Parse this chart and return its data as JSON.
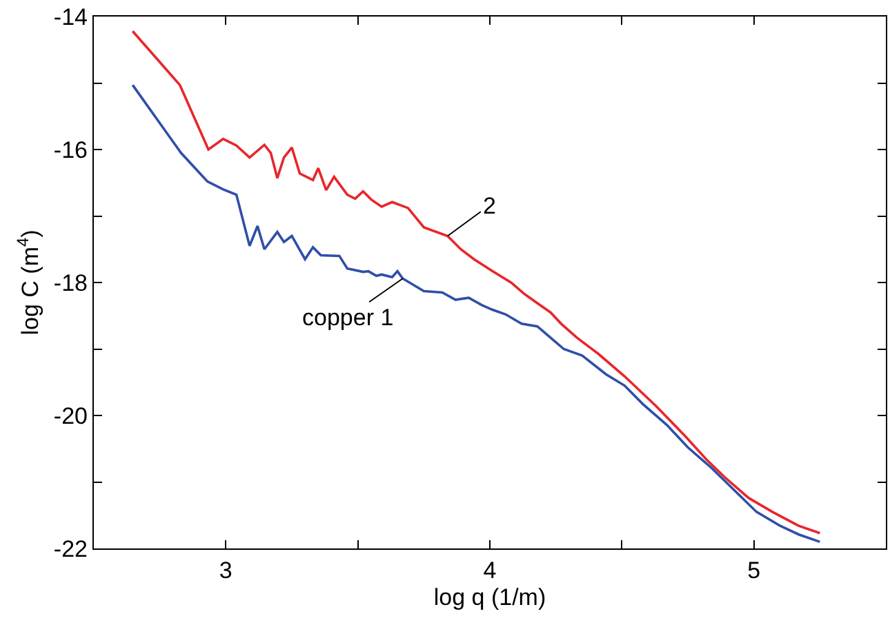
{
  "chart_data": {
    "type": "line",
    "xlabel": "log q (1/m)",
    "ylabel": "log C (m$^{4}$)",
    "xlim": [
      2.5,
      5.5
    ],
    "ylim": [
      -22,
      -14
    ],
    "xticks": [
      {
        "value": 2.5,
        "label": null
      },
      3,
      {
        "value": 3.5,
        "label": null
      },
      4,
      {
        "value": 4.5,
        "label": null
      },
      5,
      {
        "value": 5.5,
        "label": null
      }
    ],
    "yticks": [
      -22,
      {
        "value": -21,
        "label": null
      },
      -20,
      {
        "value": -19,
        "label": null
      },
      -18,
      {
        "value": -17,
        "label": null
      },
      -16,
      {
        "value": -15,
        "label": null
      },
      -14
    ],
    "marker": "none",
    "line_style": "solid",
    "series": [
      {
        "color": "#e8262b",
        "x": [
          2.647,
          2.826,
          2.934,
          2.99,
          3.04,
          3.09,
          3.146,
          3.17,
          3.195,
          3.22,
          3.25,
          3.28,
          3.33,
          3.35,
          3.38,
          3.41,
          3.46,
          3.49,
          3.52,
          3.55,
          3.59,
          3.63,
          3.69,
          3.75,
          3.84,
          3.89,
          3.94,
          4.01,
          4.08,
          4.13,
          4.19,
          4.23,
          4.27,
          4.33,
          4.41,
          4.51,
          4.63,
          4.74,
          4.82,
          4.89,
          4.98,
          5.07,
          5.17,
          5.25
        ],
        "values": [
          -14.22,
          -15.03,
          -16.0,
          -15.84,
          -15.94,
          -16.12,
          -15.93,
          -16.05,
          -16.43,
          -16.12,
          -15.97,
          -16.36,
          -16.46,
          -16.28,
          -16.61,
          -16.41,
          -16.68,
          -16.74,
          -16.63,
          -16.75,
          -16.86,
          -16.79,
          -16.88,
          -17.17,
          -17.3,
          -17.5,
          -17.65,
          -17.83,
          -18.0,
          -18.17,
          -18.34,
          -18.45,
          -18.62,
          -18.83,
          -19.07,
          -19.41,
          -19.86,
          -20.31,
          -20.66,
          -20.93,
          -21.24,
          -21.45,
          -21.66,
          -21.77
        ]
      },
      {
        "color": "#2f4fa8",
        "x": [
          2.647,
          2.83,
          2.93,
          2.99,
          3.04,
          3.09,
          3.12,
          3.146,
          3.195,
          3.22,
          3.25,
          3.3,
          3.33,
          3.36,
          3.43,
          3.46,
          3.52,
          3.54,
          3.57,
          3.59,
          3.63,
          3.65,
          3.67,
          3.75,
          3.82,
          3.87,
          3.92,
          3.97,
          4.01,
          4.06,
          4.12,
          4.18,
          4.23,
          4.28,
          4.35,
          4.44,
          4.51,
          4.58,
          4.67,
          4.75,
          4.84,
          4.93,
          5.01,
          5.1,
          5.17,
          5.25
        ],
        "values": [
          -15.03,
          -16.05,
          -16.48,
          -16.6,
          -16.68,
          -17.45,
          -17.15,
          -17.5,
          -17.24,
          -17.39,
          -17.3,
          -17.65,
          -17.47,
          -17.59,
          -17.6,
          -17.79,
          -17.84,
          -17.83,
          -17.9,
          -17.88,
          -17.92,
          -17.83,
          -17.94,
          -18.13,
          -18.15,
          -18.26,
          -18.23,
          -18.34,
          -18.41,
          -18.48,
          -18.62,
          -18.66,
          -18.83,
          -19.0,
          -19.1,
          -19.38,
          -19.55,
          -19.83,
          -20.14,
          -20.48,
          -20.79,
          -21.14,
          -21.45,
          -21.66,
          -21.79,
          -21.9
        ]
      }
    ],
    "annotations": [
      {
        "text": "2",
        "x": 3.84,
        "y": -17.3
      },
      {
        "text": "copper 1",
        "x": 3.67,
        "y": -17.94
      }
    ]
  }
}
